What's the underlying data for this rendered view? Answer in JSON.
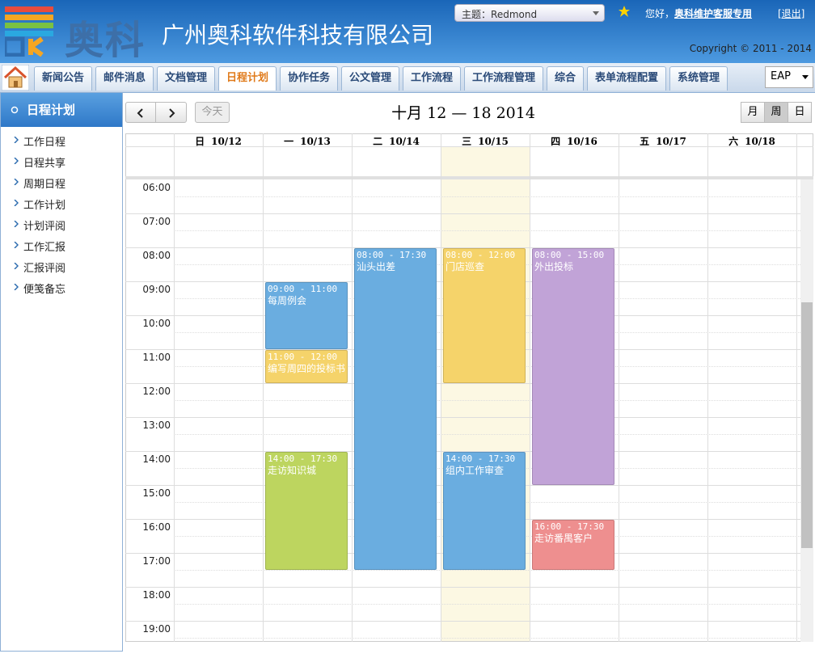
{
  "header": {
    "logo_text": "奥科",
    "company": "广州奥科软件科技有限公司",
    "theme_label": "主题：",
    "theme_value": "Redmond",
    "greeting": "您好，",
    "user": "奥科维护客服专用",
    "logout": "[退出]",
    "copyright": "Copyright © 2011 - 2014"
  },
  "nav": {
    "items": [
      {
        "label": "新闻公告"
      },
      {
        "label": "邮件消息"
      },
      {
        "label": "文档管理"
      },
      {
        "label": "日程计划",
        "active": true
      },
      {
        "label": "协作任务"
      },
      {
        "label": "公文管理"
      },
      {
        "label": "工作流程"
      },
      {
        "label": "工作流程管理"
      },
      {
        "label": "综合"
      },
      {
        "label": "表单流程配置"
      },
      {
        "label": "系统管理"
      }
    ],
    "select": "EAP"
  },
  "sidebar": {
    "title": "日程计划",
    "items": [
      "工作日程",
      "日程共享",
      "周期日程",
      "工作计划",
      "计划评阅",
      "工作汇报",
      "汇报评阅",
      "便笺备忘"
    ]
  },
  "calendar": {
    "today_button": "今天",
    "title": "十月 12 — 18 2014",
    "views": [
      {
        "label": "月"
      },
      {
        "label": "周",
        "active": true
      },
      {
        "label": "日"
      }
    ],
    "days": [
      {
        "weekday": "日",
        "date": "10/12",
        "events": []
      },
      {
        "weekday": "一",
        "date": "10/13",
        "events": [
          {
            "time": "09:00 - 11:00",
            "title": "每周例会",
            "color": "#6aade0"
          },
          {
            "time": "11:00 - 12:00",
            "title": "编写周四的投标书",
            "color": "#f5d36a"
          },
          {
            "time": "14:00 - 17:30",
            "title": "走访知识城",
            "color": "#bdd55f"
          }
        ]
      },
      {
        "weekday": "二",
        "date": "10/14",
        "events": [
          {
            "time": "08:00 - 17:30",
            "title": "汕头出差",
            "color": "#6aade0"
          }
        ]
      },
      {
        "weekday": "三",
        "date": "10/15",
        "today": true,
        "events": [
          {
            "time": "08:00 - 12:00",
            "title": "门店巡查",
            "color": "#f5d36a"
          },
          {
            "time": "14:00 - 17:30",
            "title": "组内工作审查",
            "color": "#6aade0"
          }
        ]
      },
      {
        "weekday": "四",
        "date": "10/16",
        "events": [
          {
            "time": "08:00 - 15:00",
            "title": "外出投标",
            "color": "#c1a3d7"
          },
          {
            "time": "16:00 - 17:30",
            "title": "走访番禺客户",
            "color": "#ee8f8f"
          }
        ]
      },
      {
        "weekday": "五",
        "date": "10/17",
        "events": []
      },
      {
        "weekday": "六",
        "date": "10/18",
        "events": []
      }
    ],
    "times": [
      "06:00",
      "07:00",
      "08:00",
      "09:00",
      "10:00",
      "11:00",
      "12:00",
      "13:00",
      "14:00",
      "15:00",
      "16:00",
      "17:00",
      "18:00",
      "19:00"
    ]
  }
}
